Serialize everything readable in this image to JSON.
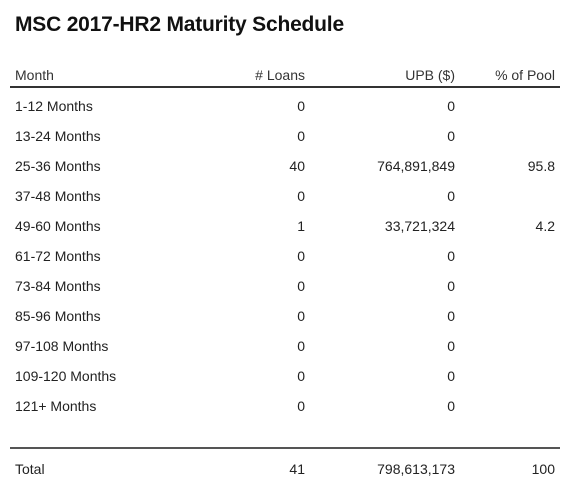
{
  "title": "MSC 2017-HR2 Maturity Schedule",
  "columns": {
    "month": "Month",
    "loans": "# Loans",
    "upb": "UPB ($)",
    "pct": "% of Pool"
  },
  "rows": [
    {
      "month": "1-12 Months",
      "loans": "0",
      "upb": "0",
      "pct": ""
    },
    {
      "month": "13-24 Months",
      "loans": "0",
      "upb": "0",
      "pct": ""
    },
    {
      "month": "25-36 Months",
      "loans": "40",
      "upb": "764,891,849",
      "pct": "95.8"
    },
    {
      "month": "37-48 Months",
      "loans": "0",
      "upb": "0",
      "pct": ""
    },
    {
      "month": "49-60 Months",
      "loans": "1",
      "upb": "33,721,324",
      "pct": "4.2"
    },
    {
      "month": "61-72 Months",
      "loans": "0",
      "upb": "0",
      "pct": ""
    },
    {
      "month": "73-84 Months",
      "loans": "0",
      "upb": "0",
      "pct": ""
    },
    {
      "month": "85-96 Months",
      "loans": "0",
      "upb": "0",
      "pct": ""
    },
    {
      "month": "97-108 Months",
      "loans": "0",
      "upb": "0",
      "pct": ""
    },
    {
      "month": "109-120 Months",
      "loans": "0",
      "upb": "0",
      "pct": ""
    },
    {
      "month": "121+ Months",
      "loans": "0",
      "upb": "0",
      "pct": ""
    }
  ],
  "total": {
    "label": "Total",
    "loans": "41",
    "upb": "798,613,173",
    "pct": "100"
  },
  "chart_data": {
    "type": "table",
    "title": "MSC 2017-HR2 Maturity Schedule",
    "columns": [
      "Month",
      "# Loans",
      "UPB ($)",
      "% of Pool"
    ],
    "rows": [
      [
        "1-12 Months",
        0,
        0,
        null
      ],
      [
        "13-24 Months",
        0,
        0,
        null
      ],
      [
        "25-36 Months",
        40,
        764891849,
        95.8
      ],
      [
        "37-48 Months",
        0,
        0,
        null
      ],
      [
        "49-60 Months",
        1,
        33721324,
        4.2
      ],
      [
        "61-72 Months",
        0,
        0,
        null
      ],
      [
        "73-84 Months",
        0,
        0,
        null
      ],
      [
        "85-96 Months",
        0,
        0,
        null
      ],
      [
        "97-108 Months",
        0,
        0,
        null
      ],
      [
        "109-120 Months",
        0,
        0,
        null
      ],
      [
        "121+ Months",
        0,
        0,
        null
      ]
    ],
    "total": [
      "Total",
      41,
      798613173,
      100
    ]
  }
}
